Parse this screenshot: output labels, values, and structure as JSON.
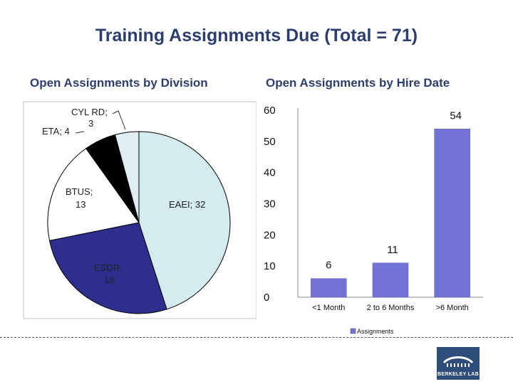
{
  "title": "Training Assignments Due (Total = 71)",
  "chart_data": [
    {
      "type": "pie",
      "title": "Open Assignments by Division",
      "slices": [
        {
          "label": "EAEI",
          "value": 32,
          "color": "#d4ebef",
          "text": "EAEI; 32"
        },
        {
          "label": "ESDR",
          "value": 19,
          "color": "#2e2e8f",
          "text": "ESDR; 19"
        },
        {
          "label": "BTUS",
          "value": 13,
          "color": "#ffffff",
          "text": "BTUS; 13"
        },
        {
          "label": "ETA",
          "value": 4,
          "color": "#000000",
          "text": "ETA; 4"
        },
        {
          "label": "CYL RD",
          "value": 3,
          "color": "#e0eef2",
          "text": "CYL RD; 3"
        }
      ]
    },
    {
      "type": "bar",
      "title": "Open Assignments by Hire Date",
      "categories": [
        "<1 Month",
        "2 to 6 Months",
        ">6 Month"
      ],
      "series": [
        {
          "name": "Assignments",
          "values": [
            6,
            11,
            54
          ],
          "color": "#7373d6"
        }
      ],
      "ylim": [
        0,
        60
      ],
      "yticks": [
        0,
        10,
        20,
        30,
        40,
        50,
        60
      ],
      "legend": "bottom"
    }
  ],
  "logo": {
    "text": "BERKELEY LAB"
  }
}
